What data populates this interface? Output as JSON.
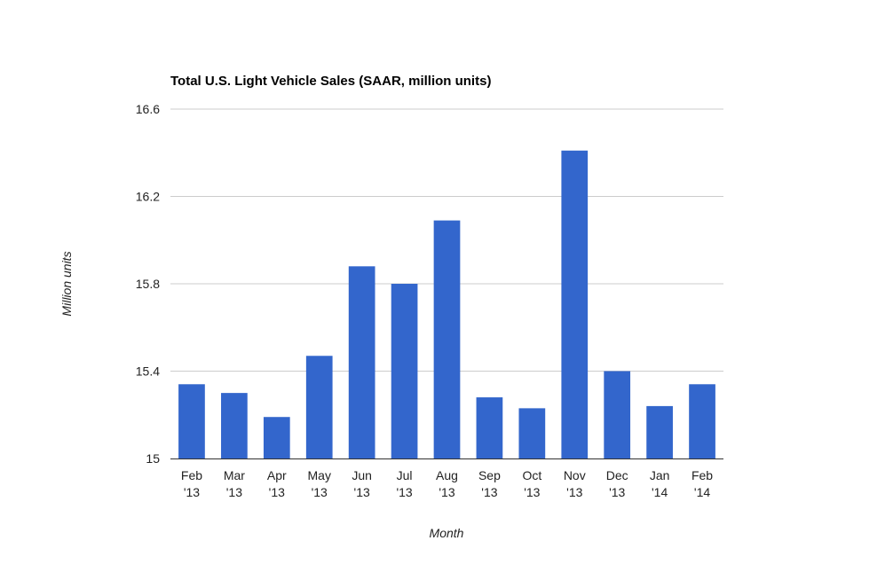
{
  "chart_data": {
    "type": "bar",
    "title": "Total U.S. Light Vehicle Sales (SAAR, million units)",
    "xlabel": "Month",
    "ylabel": "Million units",
    "categories": [
      [
        "Feb",
        "'13"
      ],
      [
        "Mar",
        "'13"
      ],
      [
        "Apr",
        "'13"
      ],
      [
        "May",
        "'13"
      ],
      [
        "Jun",
        "'13"
      ],
      [
        "Jul",
        "'13"
      ],
      [
        "Aug",
        "'13"
      ],
      [
        "Sep",
        "'13"
      ],
      [
        "Oct",
        "'13"
      ],
      [
        "Nov",
        "'13"
      ],
      [
        "Dec",
        "'13"
      ],
      [
        "Jan",
        "'14"
      ],
      [
        "Feb",
        "'14"
      ]
    ],
    "values": [
      15.34,
      15.3,
      15.19,
      15.47,
      15.88,
      15.8,
      16.09,
      15.28,
      15.23,
      16.41,
      15.4,
      15.24,
      15.34
    ],
    "ylim": [
      15,
      16.6
    ],
    "yticks": [
      "15",
      "15.4",
      "15.8",
      "16.2",
      "16.6"
    ],
    "grid": true,
    "legend": "none",
    "bar_color": "#3366cc",
    "grid_color": "#cccccc"
  }
}
